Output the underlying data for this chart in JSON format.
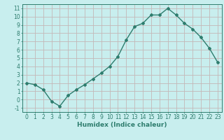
{
  "x": [
    0,
    1,
    2,
    3,
    4,
    5,
    6,
    7,
    8,
    9,
    10,
    11,
    12,
    13,
    14,
    15,
    16,
    17,
    18,
    19,
    20,
    21,
    22,
    23
  ],
  "y": [
    2.0,
    1.8,
    1.2,
    -0.2,
    -0.8,
    0.5,
    1.2,
    1.8,
    2.5,
    3.2,
    4.0,
    5.2,
    7.2,
    8.8,
    9.2,
    10.2,
    10.2,
    11.0,
    10.2,
    9.2,
    8.5,
    7.5,
    6.2,
    4.5
  ],
  "line_color": "#2e7d6e",
  "bg_color": "#c8eeee",
  "grid_color": "#c4b8b8",
  "xlabel": "Humidex (Indice chaleur)",
  "xlim": [
    -0.5,
    23.5
  ],
  "ylim": [
    -1.5,
    11.5
  ],
  "yticks": [
    -1,
    0,
    1,
    2,
    3,
    4,
    5,
    6,
    7,
    8,
    9,
    10,
    11
  ],
  "xticks": [
    0,
    1,
    2,
    3,
    4,
    5,
    6,
    7,
    8,
    9,
    10,
    11,
    12,
    13,
    14,
    15,
    16,
    17,
    18,
    19,
    20,
    21,
    22,
    23
  ],
  "tick_color": "#2e7d6e",
  "label_fontsize": 6.5,
  "tick_fontsize": 5.5
}
